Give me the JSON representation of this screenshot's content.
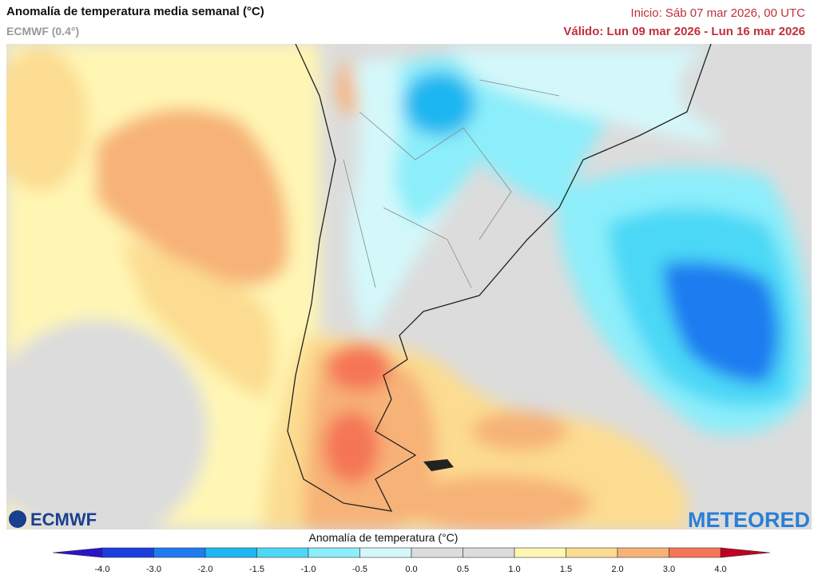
{
  "header": {
    "title": "Anomalía de temperatura media semanal (°C)",
    "subtitle": "ECMWF (0.4°)",
    "init": "Inicio: Sáb 07 mar 2026, 00 UTC",
    "valid": "Válido: Lun 09 mar 2026 - Lun 16 mar 2026"
  },
  "logos": {
    "left": "ECMWF",
    "right": "METEORED"
  },
  "colorbar": {
    "title": "Anomalía de temperatura (°C)",
    "ticks": [
      "-4.0",
      "-3.0",
      "-2.0",
      "-1.5",
      "-1.0",
      "-0.5",
      "0.0",
      "0.5",
      "1.0",
      "1.5",
      "2.0",
      "3.0",
      "4.0"
    ],
    "colors": [
      "#1a3ee0",
      "#1e7cf0",
      "#1eb6f0",
      "#4cd8f6",
      "#8ceefa",
      "#d4f8fa",
      "#dcdcdc",
      "#dcdcdc",
      "#fff6b4",
      "#fcdc90",
      "#f7b277",
      "#f57656"
    ],
    "low_color": "#2a14c8",
    "high_color": "#c00020"
  }
}
